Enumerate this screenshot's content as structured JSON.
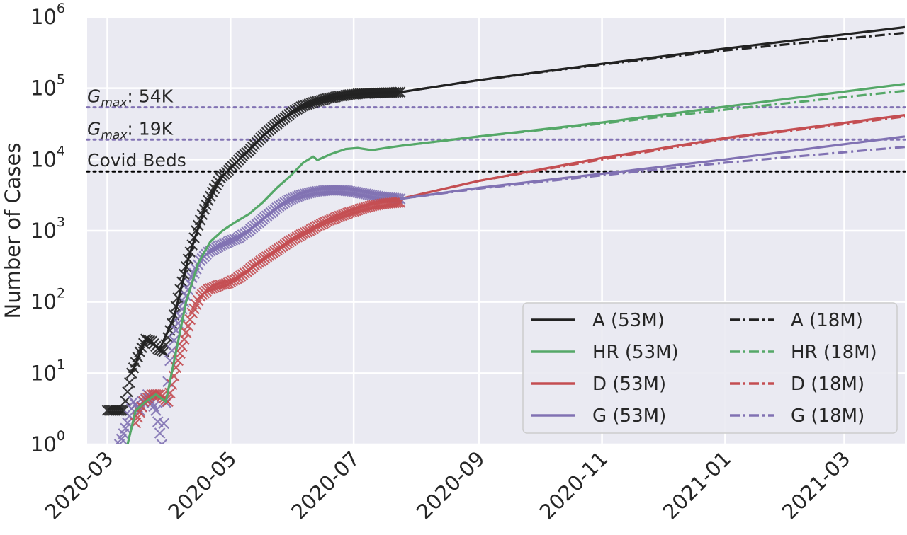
{
  "chart_data": {
    "type": "line",
    "title": "",
    "xlabel": "",
    "ylabel": "Number of Cases",
    "yscale": "log",
    "ylim": [
      1,
      1000000
    ],
    "xlim": [
      "2020-02-20",
      "2021-03-31"
    ],
    "grid": true,
    "background": "#eaeaf2",
    "y_ticks": [
      {
        "value": 1,
        "base": "10",
        "exp": "0"
      },
      {
        "value": 10,
        "base": "10",
        "exp": "1"
      },
      {
        "value": 100,
        "base": "10",
        "exp": "2"
      },
      {
        "value": 1000,
        "base": "10",
        "exp": "3"
      },
      {
        "value": 10000,
        "base": "10",
        "exp": "4"
      },
      {
        "value": 100000,
        "base": "10",
        "exp": "5"
      },
      {
        "value": 1000000,
        "base": "10",
        "exp": "6"
      }
    ],
    "x_ticks": [
      "2020-03",
      "2020-05",
      "2020-07",
      "2020-09",
      "2020-11",
      "2021-01",
      "2021-03"
    ],
    "reference_lines": [
      {
        "label_base": "G",
        "label_sub": "max",
        "label_rest": ": 54K",
        "value": 54000,
        "color": "#8172b3",
        "style": "dotted"
      },
      {
        "label_base": "G",
        "label_sub": "max",
        "label_rest": ": 19K",
        "value": 19000,
        "color": "#8172b3",
        "style": "dotted"
      },
      {
        "label_base": "Covid Beds",
        "label_sub": "",
        "label_rest": "",
        "value": 6800,
        "color": "#000000",
        "style": "dotted"
      }
    ],
    "observed": [
      {
        "name": "A",
        "color": "#222222",
        "marker": "x",
        "x": [
          "2020-03-01",
          "2020-03-05",
          "2020-03-09",
          "2020-03-13",
          "2020-03-17",
          "2020-03-20",
          "2020-03-23",
          "2020-03-26",
          "2020-03-29",
          "2020-04-02",
          "2020-04-06",
          "2020-04-10",
          "2020-04-14",
          "2020-04-18",
          "2020-04-22",
          "2020-04-26",
          "2020-05-01",
          "2020-05-06",
          "2020-05-11",
          "2020-05-16",
          "2020-05-21",
          "2020-05-26",
          "2020-05-31",
          "2020-06-05",
          "2020-06-10",
          "2020-06-15",
          "2020-06-20",
          "2020-06-25",
          "2020-06-30",
          "2020-07-05",
          "2020-07-10",
          "2020-07-15",
          "2020-07-20",
          "2020-07-24"
        ],
        "y": [
          3,
          3,
          3,
          10,
          20,
          30,
          28,
          22,
          20,
          50,
          150,
          400,
          1000,
          2000,
          3500,
          5500,
          7500,
          10500,
          14000,
          20000,
          27000,
          35000,
          45000,
          55000,
          62000,
          68000,
          74000,
          78000,
          82000,
          84000,
          85000,
          86000,
          87000,
          88000
        ]
      },
      {
        "name": "G",
        "color": "#8172b3",
        "marker": "x",
        "x": [
          "2020-03-07",
          "2020-03-11",
          "2020-03-14",
          "2020-03-17",
          "2020-03-21",
          "2020-03-25",
          "2020-03-28",
          "2020-04-01",
          "2020-04-04",
          "2020-04-08",
          "2020-04-12",
          "2020-04-16",
          "2020-04-20",
          "2020-04-25",
          "2020-04-30",
          "2020-05-05",
          "2020-05-10",
          "2020-05-15",
          "2020-05-20",
          "2020-05-25",
          "2020-05-30",
          "2020-06-04",
          "2020-06-09",
          "2020-06-14",
          "2020-06-19",
          "2020-06-24",
          "2020-06-29",
          "2020-07-04",
          "2020-07-09",
          "2020-07-14",
          "2020-07-19",
          "2020-07-24"
        ],
        "y": [
          1,
          2,
          4,
          3,
          5,
          3,
          1,
          15,
          40,
          100,
          220,
          380,
          500,
          600,
          700,
          800,
          1000,
          1300,
          1700,
          2200,
          2700,
          3100,
          3400,
          3600,
          3700,
          3700,
          3600,
          3400,
          3200,
          3000,
          2900,
          2800
        ]
      },
      {
        "name": "D",
        "color": "#c44e52",
        "marker": "x",
        "x": [
          "2020-03-15",
          "2020-03-19",
          "2020-03-23",
          "2020-03-27",
          "2020-03-31",
          "2020-04-04",
          "2020-04-08",
          "2020-04-12",
          "2020-04-16",
          "2020-04-20",
          "2020-04-25",
          "2020-04-30",
          "2020-05-05",
          "2020-05-10",
          "2020-05-15",
          "2020-05-20",
          "2020-05-25",
          "2020-05-30",
          "2020-06-04",
          "2020-06-09",
          "2020-06-14",
          "2020-06-19",
          "2020-06-24",
          "2020-06-29",
          "2020-07-04",
          "2020-07-09",
          "2020-07-14",
          "2020-07-19",
          "2020-07-24"
        ],
        "y": [
          2,
          4,
          5,
          5,
          4,
          12,
          30,
          70,
          120,
          150,
          170,
          185,
          220,
          280,
          360,
          450,
          560,
          700,
          850,
          1000,
          1200,
          1400,
          1600,
          1800,
          2000,
          2200,
          2350,
          2450,
          2500
        ]
      }
    ],
    "series": [
      {
        "name": "A (53M)",
        "color": "#222222",
        "dash": "solid",
        "x": [
          "2020-03-13",
          "2020-03-20",
          "2020-03-27",
          "2020-04-03",
          "2020-04-10",
          "2020-04-18",
          "2020-04-26",
          "2020-05-06",
          "2020-05-16",
          "2020-05-26",
          "2020-06-05",
          "2020-06-15",
          "2020-06-25",
          "2020-07-05",
          "2020-07-15",
          "2020-07-24",
          "2020-09-01",
          "2020-11-01",
          "2021-01-01",
          "2021-03-31"
        ],
        "y": [
          10,
          30,
          22,
          60,
          400,
          2000,
          5500,
          10500,
          20000,
          35000,
          55000,
          68000,
          78000,
          84000,
          86000,
          88000,
          130000,
          220000,
          360000,
          720000
        ]
      },
      {
        "name": "A (18M)",
        "color": "#222222",
        "dash": "dashdot",
        "x": [
          "2020-07-24",
          "2020-09-01",
          "2020-11-01",
          "2021-01-01",
          "2021-03-31"
        ],
        "y": [
          88000,
          130000,
          215000,
          340000,
          600000
        ]
      },
      {
        "name": "HR (53M)",
        "color": "#55a868",
        "dash": "solid",
        "x": [
          "2020-03-11",
          "2020-03-15",
          "2020-03-20",
          "2020-03-25",
          "2020-03-30",
          "2020-04-04",
          "2020-04-09",
          "2020-04-15",
          "2020-04-21",
          "2020-04-27",
          "2020-05-03",
          "2020-05-10",
          "2020-05-17",
          "2020-05-24",
          "2020-05-31",
          "2020-06-06",
          "2020-06-11",
          "2020-06-13",
          "2020-06-20",
          "2020-06-27",
          "2020-07-03",
          "2020-07-10",
          "2020-07-17",
          "2020-07-24",
          "2020-09-01",
          "2020-11-01",
          "2021-01-01",
          "2021-03-31"
        ],
        "y": [
          1,
          3,
          4,
          5,
          4,
          20,
          100,
          350,
          700,
          1000,
          1300,
          1700,
          2500,
          4000,
          6000,
          9000,
          11000,
          9800,
          12000,
          14000,
          14500,
          13500,
          14500,
          15500,
          21000,
          33000,
          55000,
          115000
        ]
      },
      {
        "name": "HR (18M)",
        "color": "#55a868",
        "dash": "dashdot",
        "x": [
          "2020-07-24",
          "2020-09-01",
          "2020-11-01",
          "2021-01-01",
          "2021-03-31"
        ],
        "y": [
          15500,
          21000,
          32000,
          50000,
          92000
        ]
      },
      {
        "name": "D (53M)",
        "color": "#c44e52",
        "dash": "solid",
        "x": [
          "2020-07-24",
          "2020-09-01",
          "2020-11-01",
          "2021-01-01",
          "2021-03-31"
        ],
        "y": [
          2800,
          5000,
          10500,
          20000,
          42000
        ]
      },
      {
        "name": "D (18M)",
        "color": "#c44e52",
        "dash": "dashdot",
        "x": [
          "2020-07-24",
          "2020-09-01",
          "2020-11-01",
          "2021-01-01",
          "2021-03-31"
        ],
        "y": [
          2800,
          5000,
          10000,
          19500,
          40000
        ]
      },
      {
        "name": "G (53M)",
        "color": "#8172b3",
        "dash": "solid",
        "x": [
          "2020-07-24",
          "2020-09-01",
          "2020-11-01",
          "2021-01-01",
          "2021-03-31"
        ],
        "y": [
          2800,
          4000,
          6300,
          10000,
          21000
        ]
      },
      {
        "name": "G (18M)",
        "color": "#8172b3",
        "dash": "dashdot",
        "x": [
          "2020-07-24",
          "2020-09-01",
          "2020-11-01",
          "2021-01-01",
          "2021-03-31"
        ],
        "y": [
          2800,
          3900,
          6000,
          9000,
          15000
        ]
      }
    ],
    "legend": {
      "placement": "bottom-right",
      "columns": 2,
      "entries": [
        "A (53M)",
        "A (18M)",
        "HR (53M)",
        "HR (18M)",
        "D (53M)",
        "D (18M)",
        "G (53M)",
        "G (18M)"
      ]
    }
  }
}
